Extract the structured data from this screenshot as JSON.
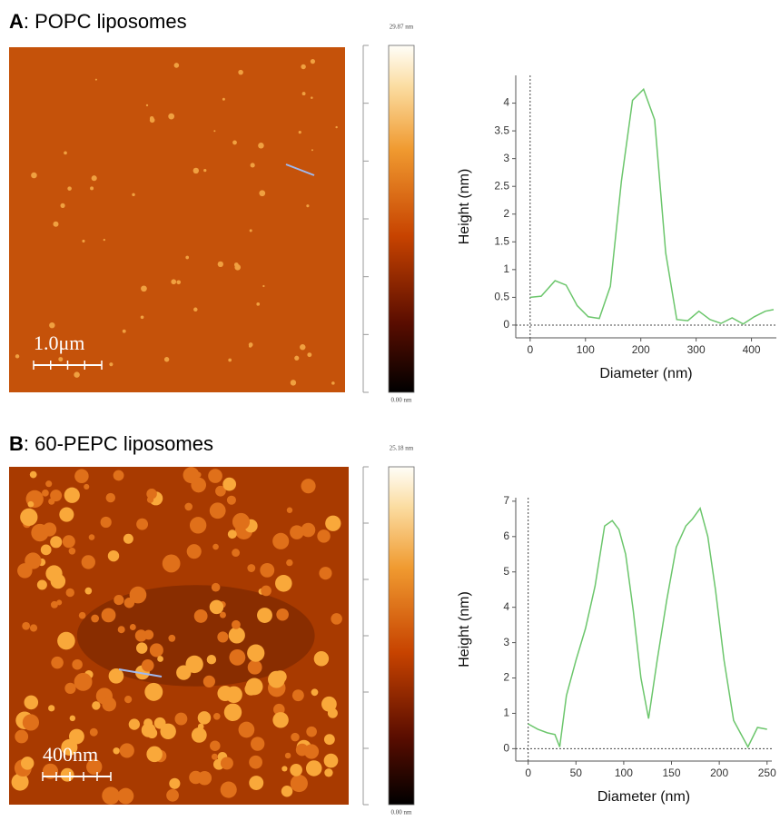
{
  "panels": [
    {
      "letter": "A",
      "title": ": POPC liposomes",
      "colorbar_max": "29.87 nm",
      "colorbar_min": "0.00 nm",
      "scale_bar": "1.0μm"
    },
    {
      "letter": "B",
      "title": ": 60-PEPC liposomes",
      "colorbar_max": "25.18 nm",
      "colorbar_min": "0.00 nm",
      "scale_bar": "400nm"
    }
  ],
  "chart_data": [
    {
      "type": "line",
      "x_label": "Diameter (nm)",
      "y_label": "Height (nm)",
      "color": "#6cc66c",
      "x": [
        0,
        20,
        45,
        65,
        85,
        105,
        125,
        145,
        165,
        185,
        205,
        225,
        245,
        265,
        285,
        305,
        325,
        345,
        365,
        385,
        405,
        425,
        440
      ],
      "values": [
        0.5,
        0.52,
        0.8,
        0.72,
        0.35,
        0.15,
        0.12,
        0.7,
        2.6,
        4.05,
        4.25,
        3.7,
        1.3,
        0.1,
        0.08,
        0.25,
        0.1,
        0.03,
        0.13,
        0.02,
        0.15,
        0.25,
        0.28
      ],
      "xlim": [
        -26,
        445
      ],
      "ylim": [
        -0.23,
        4.5
      ],
      "xticks": [
        0,
        100,
        200,
        300,
        400
      ],
      "yticks": [
        0,
        0.5,
        1,
        1.5,
        2,
        2.5,
        3,
        3.5,
        4
      ]
    },
    {
      "type": "line",
      "x_label": "Diameter (nm)",
      "y_label": "Height (nm)",
      "color": "#6cc66c",
      "x": [
        0,
        10,
        20,
        28,
        33,
        40,
        50,
        60,
        70,
        80,
        88,
        95,
        102,
        110,
        118,
        126,
        135,
        145,
        155,
        165,
        172,
        180,
        188,
        196,
        205,
        215,
        230,
        240,
        250
      ],
      "values": [
        0.7,
        0.55,
        0.45,
        0.4,
        0.05,
        1.5,
        2.5,
        3.4,
        4.6,
        6.3,
        6.45,
        6.2,
        5.5,
        3.9,
        2.0,
        0.85,
        2.5,
        4.2,
        5.7,
        6.3,
        6.5,
        6.8,
        6.0,
        4.5,
        2.5,
        0.8,
        0.05,
        0.6,
        0.55
      ],
      "xlim": [
        -13,
        255
      ],
      "ylim": [
        -0.35,
        7.1
      ],
      "xticks": [
        0,
        50,
        100,
        150,
        200,
        250
      ],
      "yticks": [
        0,
        1,
        2,
        3,
        4,
        5,
        6,
        7
      ]
    }
  ]
}
